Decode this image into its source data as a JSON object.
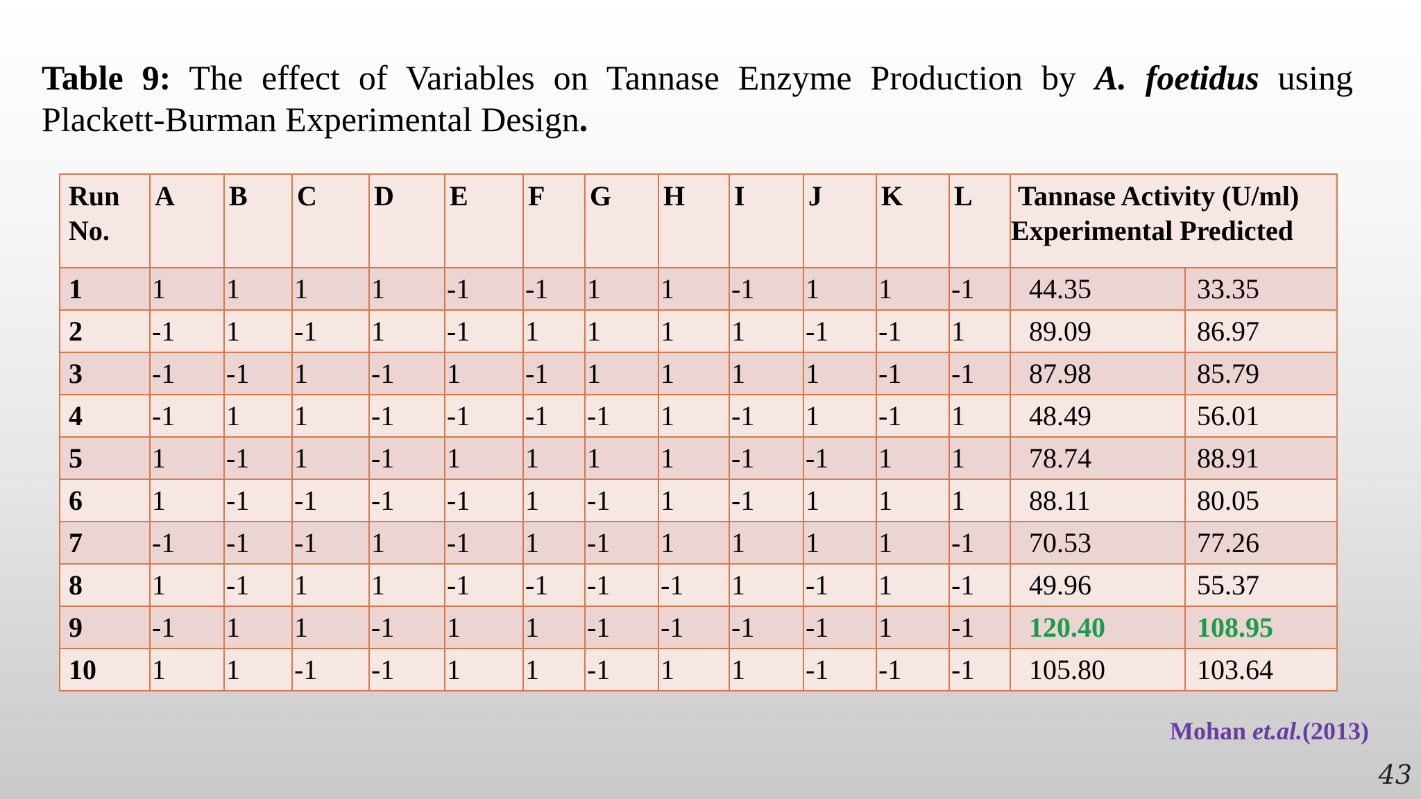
{
  "title": {
    "label": "Table 9:",
    "text_before": " The effect of Variables on Tannase Enzyme Production by ",
    "species": "A. foetidus",
    "text_after_line1": " using",
    "line2": "Plackett-Burman Experimental Design",
    "line2_end": "."
  },
  "table": {
    "header": {
      "run_line1": "Run",
      "run_line2": "No.",
      "variables": [
        "A",
        "B",
        "C",
        "D",
        "E",
        "F",
        "G",
        "H",
        "I",
        "J",
        "K",
        "L"
      ],
      "activity_line1": "Tannase Activity (U/ml)",
      "activity_line2": "Experimental Predicted"
    },
    "rows": [
      {
        "run": "1",
        "values": [
          "1",
          "1",
          "1",
          "1",
          "-1",
          "-1",
          "1",
          "1",
          "-1",
          "1",
          "1",
          "-1"
        ],
        "experimental": "44.35",
        "predicted": "33.35"
      },
      {
        "run": "2",
        "values": [
          "-1",
          "1",
          "-1",
          "1",
          "-1",
          "1",
          "1",
          "1",
          "1",
          "-1",
          "-1",
          "1"
        ],
        "experimental": "89.09",
        "predicted": "86.97"
      },
      {
        "run": "3",
        "values": [
          "-1",
          "-1",
          "1",
          "-1",
          "1",
          "-1",
          "1",
          "1",
          "1",
          "1",
          "-1",
          "-1"
        ],
        "experimental": "87.98",
        "predicted": "85.79"
      },
      {
        "run": "4",
        "values": [
          "-1",
          "1",
          "1",
          "-1",
          "-1",
          "-1",
          "-1",
          "1",
          "-1",
          "1",
          "-1",
          "1"
        ],
        "experimental": "48.49",
        "predicted": "56.01"
      },
      {
        "run": "5",
        "values": [
          "1",
          "-1",
          "1",
          "-1",
          "1",
          "1",
          "1",
          "1",
          "-1",
          "-1",
          "1",
          "1"
        ],
        "experimental": "78.74",
        "predicted": "88.91"
      },
      {
        "run": "6",
        "values": [
          "1",
          "-1",
          "-1",
          "-1",
          "-1",
          "1",
          "-1",
          "1",
          "-1",
          "1",
          "1",
          "1"
        ],
        "experimental": "88.11",
        "predicted": "80.05"
      },
      {
        "run": "7",
        "values": [
          "-1",
          "-1",
          "-1",
          "1",
          "-1",
          "1",
          "-1",
          "1",
          "1",
          "1",
          "1",
          "-1"
        ],
        "experimental": "70.53",
        "predicted": "77.26"
      },
      {
        "run": "8",
        "values": [
          "1",
          "-1",
          "1",
          "1",
          "-1",
          "-1",
          "-1",
          "-1",
          "1",
          "-1",
          "1",
          "-1"
        ],
        "experimental": "49.96",
        "predicted": "55.37"
      },
      {
        "run": "9",
        "values": [
          "-1",
          "1",
          "1",
          "-1",
          "1",
          "1",
          "-1",
          "-1",
          "-1",
          "-1",
          "1",
          "-1"
        ],
        "experimental": "120.40",
        "predicted": "108.95",
        "highlight": true
      },
      {
        "run": "10",
        "values": [
          "1",
          "1",
          "-1",
          "-1",
          "1",
          "1",
          "-1",
          "1",
          "1",
          "-1",
          "-1",
          "-1"
        ],
        "experimental": "105.80",
        "predicted": "103.64"
      }
    ]
  },
  "citation": {
    "author": "Mohan ",
    "etal": "et.al.",
    "year": "(2013)"
  },
  "page_number": "43",
  "colors": {
    "border": "#d7794a",
    "highlight": "#1a9c4a",
    "citation": "#6a3ea1",
    "row_odd": "#ebd4d1",
    "row_even": "#f7e7e3"
  }
}
